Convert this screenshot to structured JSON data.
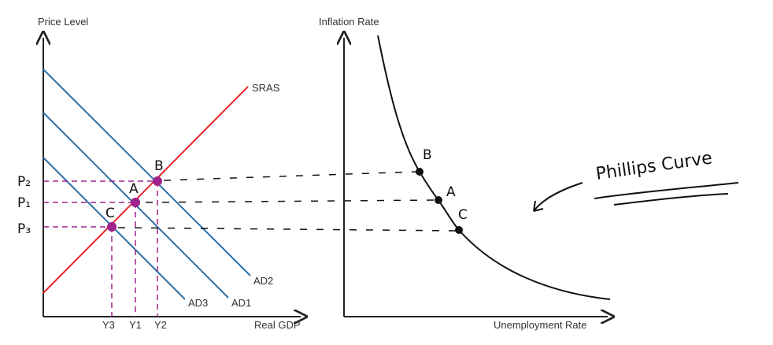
{
  "left_graph": {
    "y_axis_label": "Price Level",
    "x_axis_label": "Real GDP",
    "curves": {
      "sras": "SRAS",
      "ad1": "AD1",
      "ad2": "AD2",
      "ad3": "AD3"
    },
    "price_labels": [
      "P₂",
      "P₁",
      "P₃"
    ],
    "output_labels": [
      "Y3",
      "Y1",
      "Y2"
    ],
    "points": [
      "B",
      "A",
      "C"
    ]
  },
  "right_graph": {
    "y_axis_label": "Inflation Rate",
    "x_axis_label": "Unemployment Rate",
    "points": [
      "B",
      "A",
      "C"
    ],
    "curve_label": "Phillips Curve"
  }
}
